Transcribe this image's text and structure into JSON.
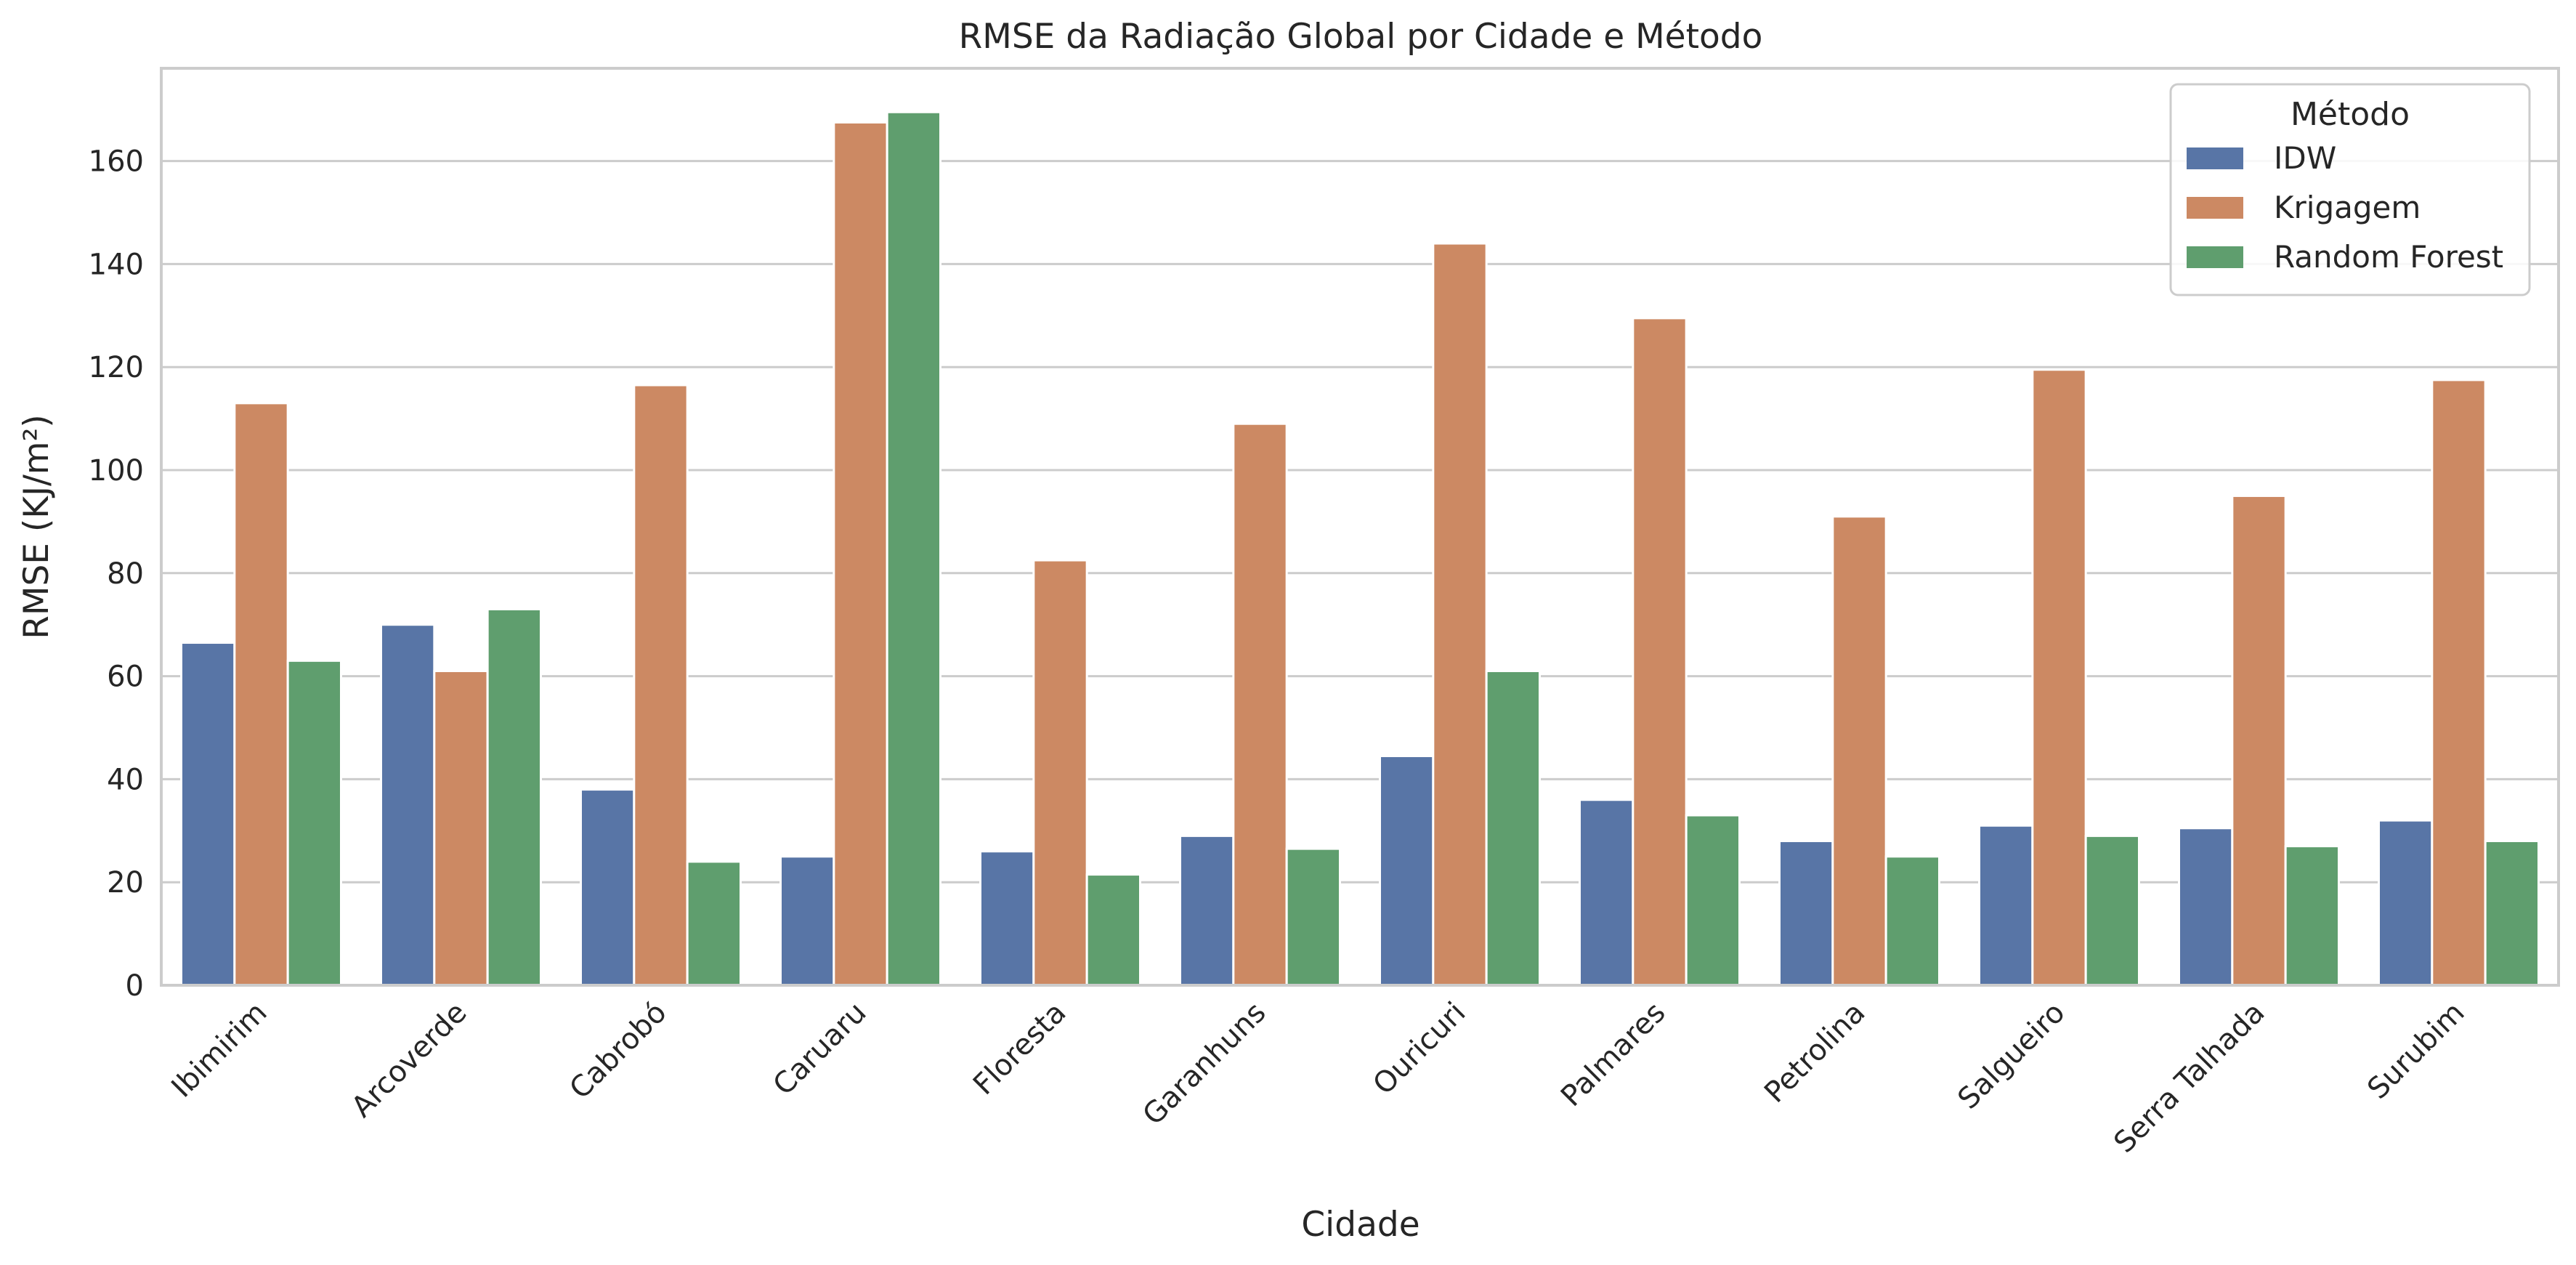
{
  "chart_data": {
    "type": "bar",
    "title": "RMSE da Radiação Global por Cidade e Método",
    "xlabel": "Cidade",
    "ylabel": "RMSE (KJ/m²)",
    "ylim": [
      0,
      178
    ],
    "yticks": [
      0,
      20,
      40,
      60,
      80,
      100,
      120,
      140,
      160
    ],
    "grid": true,
    "legend_title": "Método",
    "legend_position": "top-right",
    "categories": [
      "Ibimirim",
      "Arcoverde",
      "Cabrobó",
      "Caruaru",
      "Floresta",
      "Garanhuns",
      "Ouricuri",
      "Palmares",
      "Petrolina",
      "Salgueiro",
      "Serra Talhada",
      "Surubim"
    ],
    "series": [
      {
        "name": "IDW",
        "color": "#5875a6",
        "values": [
          66.5,
          70,
          38,
          25,
          26,
          29,
          44.5,
          36,
          28,
          31,
          30.5,
          32
        ]
      },
      {
        "name": "Krigagem",
        "color": "#cc8963",
        "values": [
          113,
          61,
          116.5,
          167.5,
          82.5,
          109,
          144,
          129.5,
          91,
          119.5,
          95,
          117.5
        ]
      },
      {
        "name": "Random Forest",
        "color": "#5f9e6e",
        "values": [
          63,
          73,
          24,
          169.5,
          21.5,
          26.5,
          61,
          33,
          25,
          29,
          27,
          28
        ]
      }
    ]
  }
}
